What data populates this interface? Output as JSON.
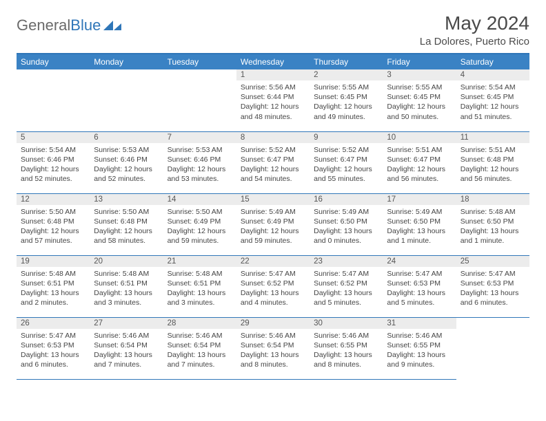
{
  "brand": {
    "part1": "General",
    "part2": "Blue"
  },
  "title": "May 2024",
  "location": "La Dolores, Puerto Rico",
  "colors": {
    "header_bg": "#3a82c4",
    "rule": "#2f76b8",
    "daynum_bg": "#ececec",
    "text": "#444444"
  },
  "weekdays": [
    "Sunday",
    "Monday",
    "Tuesday",
    "Wednesday",
    "Thursday",
    "Friday",
    "Saturday"
  ],
  "layout": {
    "first_weekday_index": 3,
    "days_in_month": 31
  },
  "days": {
    "1": {
      "sunrise": "5:56 AM",
      "sunset": "6:44 PM",
      "daylight": "12 hours and 48 minutes."
    },
    "2": {
      "sunrise": "5:55 AM",
      "sunset": "6:45 PM",
      "daylight": "12 hours and 49 minutes."
    },
    "3": {
      "sunrise": "5:55 AM",
      "sunset": "6:45 PM",
      "daylight": "12 hours and 50 minutes."
    },
    "4": {
      "sunrise": "5:54 AM",
      "sunset": "6:45 PM",
      "daylight": "12 hours and 51 minutes."
    },
    "5": {
      "sunrise": "5:54 AM",
      "sunset": "6:46 PM",
      "daylight": "12 hours and 52 minutes."
    },
    "6": {
      "sunrise": "5:53 AM",
      "sunset": "6:46 PM",
      "daylight": "12 hours and 52 minutes."
    },
    "7": {
      "sunrise": "5:53 AM",
      "sunset": "6:46 PM",
      "daylight": "12 hours and 53 minutes."
    },
    "8": {
      "sunrise": "5:52 AM",
      "sunset": "6:47 PM",
      "daylight": "12 hours and 54 minutes."
    },
    "9": {
      "sunrise": "5:52 AM",
      "sunset": "6:47 PM",
      "daylight": "12 hours and 55 minutes."
    },
    "10": {
      "sunrise": "5:51 AM",
      "sunset": "6:47 PM",
      "daylight": "12 hours and 56 minutes."
    },
    "11": {
      "sunrise": "5:51 AM",
      "sunset": "6:48 PM",
      "daylight": "12 hours and 56 minutes."
    },
    "12": {
      "sunrise": "5:50 AM",
      "sunset": "6:48 PM",
      "daylight": "12 hours and 57 minutes."
    },
    "13": {
      "sunrise": "5:50 AM",
      "sunset": "6:48 PM",
      "daylight": "12 hours and 58 minutes."
    },
    "14": {
      "sunrise": "5:50 AM",
      "sunset": "6:49 PM",
      "daylight": "12 hours and 59 minutes."
    },
    "15": {
      "sunrise": "5:49 AM",
      "sunset": "6:49 PM",
      "daylight": "12 hours and 59 minutes."
    },
    "16": {
      "sunrise": "5:49 AM",
      "sunset": "6:50 PM",
      "daylight": "13 hours and 0 minutes."
    },
    "17": {
      "sunrise": "5:49 AM",
      "sunset": "6:50 PM",
      "daylight": "13 hours and 1 minute."
    },
    "18": {
      "sunrise": "5:48 AM",
      "sunset": "6:50 PM",
      "daylight": "13 hours and 1 minute."
    },
    "19": {
      "sunrise": "5:48 AM",
      "sunset": "6:51 PM",
      "daylight": "13 hours and 2 minutes."
    },
    "20": {
      "sunrise": "5:48 AM",
      "sunset": "6:51 PM",
      "daylight": "13 hours and 3 minutes."
    },
    "21": {
      "sunrise": "5:48 AM",
      "sunset": "6:51 PM",
      "daylight": "13 hours and 3 minutes."
    },
    "22": {
      "sunrise": "5:47 AM",
      "sunset": "6:52 PM",
      "daylight": "13 hours and 4 minutes."
    },
    "23": {
      "sunrise": "5:47 AM",
      "sunset": "6:52 PM",
      "daylight": "13 hours and 5 minutes."
    },
    "24": {
      "sunrise": "5:47 AM",
      "sunset": "6:53 PM",
      "daylight": "13 hours and 5 minutes."
    },
    "25": {
      "sunrise": "5:47 AM",
      "sunset": "6:53 PM",
      "daylight": "13 hours and 6 minutes."
    },
    "26": {
      "sunrise": "5:47 AM",
      "sunset": "6:53 PM",
      "daylight": "13 hours and 6 minutes."
    },
    "27": {
      "sunrise": "5:46 AM",
      "sunset": "6:54 PM",
      "daylight": "13 hours and 7 minutes."
    },
    "28": {
      "sunrise": "5:46 AM",
      "sunset": "6:54 PM",
      "daylight": "13 hours and 7 minutes."
    },
    "29": {
      "sunrise": "5:46 AM",
      "sunset": "6:54 PM",
      "daylight": "13 hours and 8 minutes."
    },
    "30": {
      "sunrise": "5:46 AM",
      "sunset": "6:55 PM",
      "daylight": "13 hours and 8 minutes."
    },
    "31": {
      "sunrise": "5:46 AM",
      "sunset": "6:55 PM",
      "daylight": "13 hours and 9 minutes."
    }
  },
  "labels": {
    "sunrise": "Sunrise:",
    "sunset": "Sunset:",
    "daylight": "Daylight:"
  }
}
